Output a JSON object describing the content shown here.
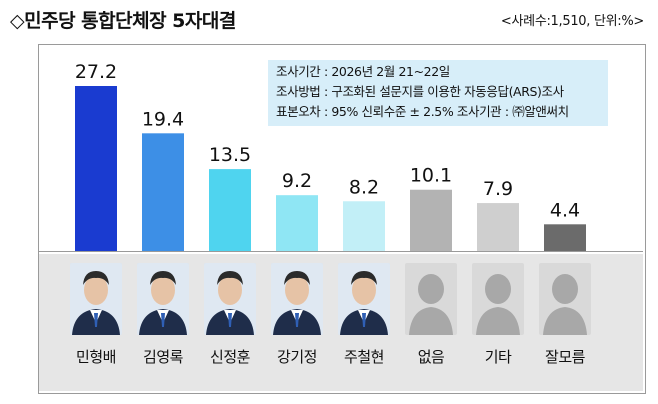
{
  "header": {
    "title": "◇민주당 통합단체장 5자대결",
    "sample_note": "<사례수:1,510, 단위:%>"
  },
  "survey_info": {
    "line1": "조사기간 : 2026년 2월 21~22일",
    "line2": "조사방법 : 구조화된 설문지를 이용한 자동응답(ARS)조사",
    "line3": "표본오차 : 95% 신뢰수준 ± 2.5%  조사기관 : ㈜알앤써치"
  },
  "chart_data": {
    "type": "bar",
    "title": "◇민주당 통합단체장 5자대결",
    "categories": [
      "민형배",
      "김영록",
      "신정훈",
      "강기정",
      "주철현",
      "없음",
      "기타",
      "잘모름"
    ],
    "values": [
      27.2,
      19.4,
      13.5,
      9.2,
      8.2,
      10.1,
      7.9,
      4.4
    ],
    "value_labels": [
      "27.2",
      "19.4",
      "13.5",
      "9.2",
      "8.2",
      "10.1",
      "7.9",
      "4.4"
    ],
    "colors": [
      "#1a3bd0",
      "#3d8fe6",
      "#4fd4ef",
      "#8fe6f4",
      "#c2eff7",
      "#b3b3b3",
      "#cfcfcf",
      "#6b6b6b"
    ],
    "ylim": [
      0,
      30
    ],
    "grid": false,
    "xlabel": "",
    "ylabel": ""
  },
  "candidates": [
    {
      "photo": "candidate-photo",
      "silhouette": false
    },
    {
      "photo": "candidate-photo",
      "silhouette": false
    },
    {
      "photo": "candidate-photo",
      "silhouette": false
    },
    {
      "photo": "candidate-photo",
      "silhouette": false
    },
    {
      "photo": "candidate-photo",
      "silhouette": false
    },
    {
      "photo": "silhouette-icon",
      "silhouette": true
    },
    {
      "photo": "silhouette-icon",
      "silhouette": true
    },
    {
      "photo": "silhouette-icon",
      "silhouette": true
    }
  ]
}
